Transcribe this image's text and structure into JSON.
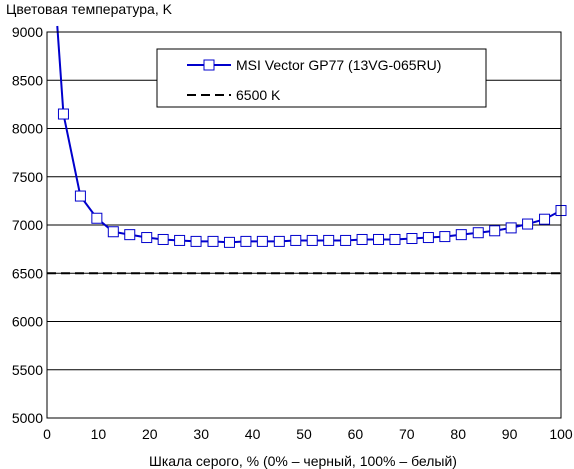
{
  "chart_data": {
    "type": "line",
    "title": "",
    "ylabel": "Цветовая температура, K",
    "xlabel": "Шкала серого, % (0% – черный, 100% – белый)",
    "xlim": [
      0,
      100
    ],
    "ylim": [
      5000,
      9000
    ],
    "xticks": [
      0,
      10,
      20,
      30,
      40,
      50,
      60,
      70,
      80,
      90,
      100
    ],
    "yticks": [
      5000,
      5500,
      6000,
      6500,
      7000,
      7500,
      8000,
      8500,
      9000
    ],
    "grid": "horizontal",
    "legend_position": "top-right",
    "series": [
      {
        "name": "MSI Vector GP77 (13VG-065RU)",
        "style": "line-square-markers",
        "color": "#0000cc",
        "x": [
          3.2,
          6.5,
          9.7,
          12.9,
          16.1,
          19.4,
          22.6,
          25.8,
          29.0,
          32.3,
          35.5,
          38.7,
          41.9,
          45.2,
          48.4,
          51.6,
          54.8,
          58.1,
          61.3,
          64.5,
          67.7,
          71.0,
          74.2,
          77.4,
          80.6,
          83.9,
          87.1,
          90.3,
          93.5,
          96.8,
          100
        ],
        "y": [
          8150,
          7300,
          7070,
          6930,
          6900,
          6870,
          6850,
          6840,
          6830,
          6830,
          6820,
          6830,
          6830,
          6830,
          6840,
          6840,
          6840,
          6840,
          6850,
          6850,
          6850,
          6860,
          6870,
          6880,
          6900,
          6920,
          6940,
          6970,
          7010,
          7060,
          7150
        ],
        "extends_above_ylim_from_x": 2
      },
      {
        "name": "6500 K",
        "style": "dashed",
        "color": "#000000",
        "x": [
          0,
          100
        ],
        "y": [
          6500,
          6500
        ]
      }
    ]
  }
}
